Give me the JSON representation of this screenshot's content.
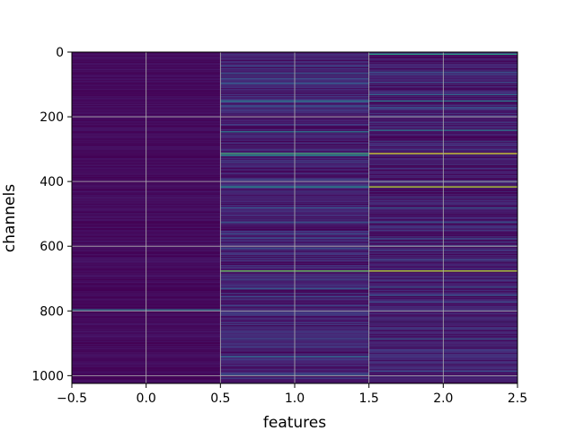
{
  "chart_data": {
    "type": "heatmap",
    "title": "",
    "xlabel": "features",
    "ylabel": "channels",
    "xlim": [
      -0.5,
      2.5
    ],
    "ylim": [
      1024,
      0
    ],
    "y_inverted": true,
    "grid": true,
    "colormap": "viridis",
    "columns": [
      0,
      1,
      2
    ],
    "rows": 1024,
    "x_ticks": [
      {
        "value": -0.5,
        "label": "−0.5"
      },
      {
        "value": 0.0,
        "label": "0.0"
      },
      {
        "value": 0.5,
        "label": "0.5"
      },
      {
        "value": 1.0,
        "label": "1.0"
      },
      {
        "value": 1.5,
        "label": "1.5"
      },
      {
        "value": 2.0,
        "label": "2.0"
      },
      {
        "value": 2.5,
        "label": "2.5"
      }
    ],
    "y_ticks": [
      {
        "value": 0,
        "label": "0"
      },
      {
        "value": 200,
        "label": "200"
      },
      {
        "value": 400,
        "label": "400"
      },
      {
        "value": 600,
        "label": "600"
      },
      {
        "value": 800,
        "label": "800"
      },
      {
        "value": 1000,
        "label": "1000"
      }
    ],
    "base_level": [
      0.04,
      0.12,
      0.1
    ],
    "highlights": [
      {
        "column": 0,
        "channel": 795,
        "value": 0.45
      },
      {
        "column": 1,
        "channel": 65,
        "value": 0.35
      },
      {
        "column": 1,
        "channel": 95,
        "value": 0.35
      },
      {
        "column": 1,
        "channel": 150,
        "value": 0.45
      },
      {
        "column": 1,
        "channel": 165,
        "value": 0.35
      },
      {
        "column": 1,
        "channel": 245,
        "value": 0.45
      },
      {
        "column": 1,
        "channel": 312,
        "value": 0.65
      },
      {
        "column": 1,
        "channel": 318,
        "value": 0.5
      },
      {
        "column": 1,
        "channel": 415,
        "value": 0.5
      },
      {
        "column": 1,
        "channel": 480,
        "value": 0.35
      },
      {
        "column": 1,
        "channel": 525,
        "value": 0.35
      },
      {
        "column": 1,
        "channel": 560,
        "value": 0.3
      },
      {
        "column": 1,
        "channel": 605,
        "value": 0.3
      },
      {
        "column": 1,
        "channel": 675,
        "value": 0.75
      },
      {
        "column": 1,
        "channel": 730,
        "value": 0.35
      },
      {
        "column": 1,
        "channel": 755,
        "value": 0.3
      },
      {
        "column": 1,
        "channel": 885,
        "value": 0.3
      },
      {
        "column": 1,
        "channel": 940,
        "value": 0.4
      },
      {
        "column": 1,
        "channel": 995,
        "value": 0.35
      },
      {
        "column": 2,
        "channel": 5,
        "value": 0.55
      },
      {
        "column": 2,
        "channel": 60,
        "value": 0.35
      },
      {
        "column": 2,
        "channel": 130,
        "value": 0.4
      },
      {
        "column": 2,
        "channel": 150,
        "value": 0.45
      },
      {
        "column": 2,
        "channel": 170,
        "value": 0.35
      },
      {
        "column": 2,
        "channel": 240,
        "value": 0.45
      },
      {
        "column": 2,
        "channel": 312,
        "value": 0.95
      },
      {
        "column": 2,
        "channel": 415,
        "value": 0.9
      },
      {
        "column": 2,
        "channel": 480,
        "value": 0.35
      },
      {
        "column": 2,
        "channel": 525,
        "value": 0.35
      },
      {
        "column": 2,
        "channel": 575,
        "value": 0.3
      },
      {
        "column": 2,
        "channel": 640,
        "value": 0.3
      },
      {
        "column": 2,
        "channel": 675,
        "value": 0.9
      },
      {
        "column": 2,
        "channel": 725,
        "value": 0.35
      },
      {
        "column": 2,
        "channel": 750,
        "value": 0.35
      },
      {
        "column": 2,
        "channel": 885,
        "value": 0.35
      },
      {
        "column": 2,
        "channel": 985,
        "value": 0.3
      }
    ]
  }
}
